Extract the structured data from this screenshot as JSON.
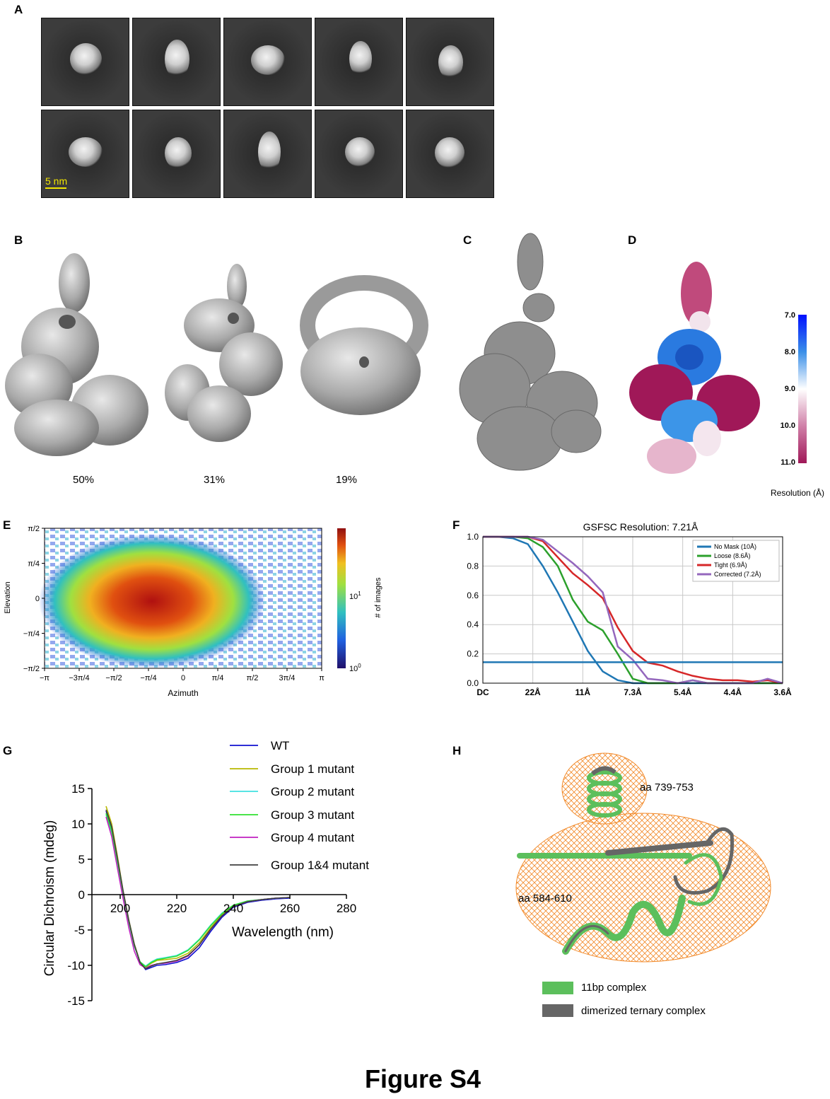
{
  "panels": {
    "A": "A",
    "B": "B",
    "C": "C",
    "D": "D",
    "E": "E",
    "F": "F",
    "G": "G",
    "H": "H"
  },
  "panelA": {
    "scale_bar": "5 nm",
    "scale_color": "#f2e600"
  },
  "panelB": {
    "percentages": [
      "50%",
      "31%",
      "19%"
    ]
  },
  "panelD": {
    "colorbar_ticks": [
      "7.0",
      "8.0",
      "9.0",
      "10.0",
      "11.0"
    ],
    "colorbar_label": "Resolution (Å)"
  },
  "panelE": {
    "ylabel": "Elevation",
    "xlabel": "Azimuth",
    "yticks": [
      "π/2",
      "π/4",
      "0",
      "−π/4",
      "−π/2"
    ],
    "xticks": [
      "−π",
      "−3π/4",
      "−π/2",
      "−π/4",
      "0",
      "π/4",
      "π/2",
      "3π/4",
      "π"
    ],
    "colorbar_label": "# of images",
    "colorbar_ticks": [
      "10",
      "10"
    ],
    "colorbar_exps": [
      "1",
      "0"
    ]
  },
  "panelF": {
    "title": "GSFSC Resolution: 7.21Å",
    "yticks": [
      "1.0",
      "0.8",
      "0.6",
      "0.4",
      "0.2",
      "0.0"
    ],
    "xticks": [
      "DC",
      "22Å",
      "11Å",
      "7.3Å",
      "5.4Å",
      "4.4Å",
      "3.6Å"
    ],
    "legend": [
      "No Mask (10Å)",
      "Loose (8.6Å)",
      "Tight (6.9Å)",
      "Corrected (7.2Å)"
    ],
    "colors": [
      "#1f77b4",
      "#2ca02c",
      "#d62728",
      "#9467bd"
    ]
  },
  "panelG": {
    "ylabel": "Circular Dichroism (mdeg)",
    "xlabel": "Wavelength (nm)",
    "yticks": [
      "15",
      "10",
      "5",
      "0",
      "-5",
      "-10",
      "-15"
    ],
    "xticks": [
      "200",
      "220",
      "240",
      "260",
      "280"
    ],
    "legend": [
      "WT",
      "Group 1 mutant",
      "Group 2 mutant",
      "Group 3 mutant",
      "Group 4 mutant",
      "Group 1&4 mutant"
    ],
    "colors": [
      "#1010d0",
      "#b8b800",
      "#40e0e0",
      "#30e030",
      "#c020c0",
      "#404040"
    ]
  },
  "panelH": {
    "label_top": "aa 739-753",
    "label_left": "aa 584-610",
    "legend": [
      "11bp complex",
      "dimerized ternary complex"
    ],
    "colors": [
      "#5cbf5c",
      "#666666"
    ]
  },
  "figure_title": "Figure S4",
  "chart_data": [
    {
      "type": "heatmap",
      "xlabel": "Azimuth",
      "ylabel": "Elevation",
      "xlim": [
        -3.1416,
        3.1416
      ],
      "ylim": [
        -1.5708,
        1.5708
      ],
      "colorbar": {
        "label": "# of images",
        "scale": "log",
        "range": [
          1,
          60
        ]
      }
    },
    {
      "type": "line",
      "title": "GSFSC Resolution: 7.21Å",
      "ylim": [
        0,
        1
      ],
      "x_ticklabels": [
        "DC",
        "22Å",
        "11Å",
        "7.3Å",
        "5.4Å",
        "4.4Å",
        "3.6Å"
      ],
      "x": [
        0,
        0.05,
        0.1,
        0.15,
        0.2,
        0.25,
        0.3,
        0.35,
        0.4,
        0.45,
        0.5,
        0.55,
        0.6,
        0.65,
        0.7,
        0.75,
        0.8,
        0.85,
        0.9,
        0.95,
        1.0
      ],
      "threshold": 0.143,
      "series": [
        {
          "name": "No Mask (10Å)",
          "values": [
            1,
            1,
            0.99,
            0.95,
            0.8,
            0.62,
            0.42,
            0.22,
            0.08,
            0.02,
            0,
            0,
            0,
            0,
            0,
            0,
            0,
            0,
            0,
            0,
            0
          ]
        },
        {
          "name": "Loose (8.6Å)",
          "values": [
            1,
            1,
            1,
            0.99,
            0.93,
            0.8,
            0.57,
            0.42,
            0.36,
            0.2,
            0.03,
            0,
            0,
            0,
            0.02,
            0,
            0,
            0,
            0,
            0,
            0
          ]
        },
        {
          "name": "Tight (6.9Å)",
          "values": [
            1,
            1,
            1,
            1,
            0.97,
            0.86,
            0.75,
            0.67,
            0.58,
            0.38,
            0.22,
            0.14,
            0.12,
            0.08,
            0.05,
            0.03,
            0.02,
            0.02,
            0.01,
            0.02,
            0
          ]
        },
        {
          "name": "Corrected (7.2Å)",
          "values": [
            1,
            1,
            1,
            1,
            0.98,
            0.9,
            0.82,
            0.73,
            0.62,
            0.25,
            0.16,
            0.03,
            0.02,
            0,
            0.02,
            0,
            0,
            0,
            0,
            0.03,
            0
          ]
        }
      ]
    },
    {
      "type": "line",
      "xlabel": "Wavelength (nm)",
      "ylabel": "Circular Dichroism (mdeg)",
      "xlim": [
        190,
        280
      ],
      "ylim": [
        -15,
        15
      ],
      "x": [
        195,
        197,
        199,
        201,
        203,
        205,
        207,
        209,
        211,
        213,
        216,
        220,
        224,
        228,
        232,
        236,
        240,
        245,
        250,
        255,
        260
      ],
      "series": [
        {
          "name": "WT",
          "values": [
            11.8,
            9.5,
            5,
            0.5,
            -3.5,
            -7,
            -9.5,
            -10.6,
            -10.3,
            -10,
            -9.9,
            -9.6,
            -9,
            -7.5,
            -5.2,
            -3.2,
            -1.8,
            -1.1,
            -0.8,
            -0.6,
            -0.5
          ]
        },
        {
          "name": "Group 1 mutant",
          "values": [
            12.5,
            10,
            5.5,
            0.6,
            -3.5,
            -7,
            -9.5,
            -10.3,
            -9.7,
            -9.3,
            -9.2,
            -9,
            -8.3,
            -6.8,
            -4.7,
            -2.8,
            -1.6,
            -1,
            -0.7,
            -0.5,
            -0.4
          ]
        },
        {
          "name": "Group 2 mutant",
          "values": [
            11.3,
            8.8,
            4.6,
            0.3,
            -3.8,
            -7.3,
            -9.5,
            -10.1,
            -9.5,
            -9.1,
            -8.9,
            -8.6,
            -7.8,
            -6.3,
            -4.3,
            -2.6,
            -1.5,
            -0.9,
            -0.7,
            -0.5,
            -0.4
          ]
        },
        {
          "name": "Group 3 mutant",
          "values": [
            11.5,
            9,
            4.8,
            0.4,
            -3.7,
            -7.2,
            -9.5,
            -10.2,
            -9.6,
            -9.2,
            -9,
            -8.7,
            -7.9,
            -6.4,
            -4.4,
            -2.7,
            -1.5,
            -0.9,
            -0.7,
            -0.5,
            -0.4
          ]
        },
        {
          "name": "Group 4 mutant",
          "values": [
            11,
            8.2,
            3.8,
            -0.5,
            -4.6,
            -8,
            -9.9,
            -10.4,
            -10,
            -9.8,
            -9.7,
            -9.4,
            -8.7,
            -7.1,
            -4.9,
            -3,
            -1.7,
            -1,
            -0.7,
            -0.5,
            -0.4
          ]
        },
        {
          "name": "Group 1&4 mutant",
          "values": [
            12,
            9.6,
            5.2,
            0.6,
            -3.6,
            -7.1,
            -9.6,
            -10.5,
            -10.1,
            -9.8,
            -9.6,
            -9.3,
            -8.6,
            -7.1,
            -4.9,
            -3,
            -1.7,
            -1,
            -0.7,
            -0.5,
            -0.4
          ]
        }
      ]
    }
  ]
}
